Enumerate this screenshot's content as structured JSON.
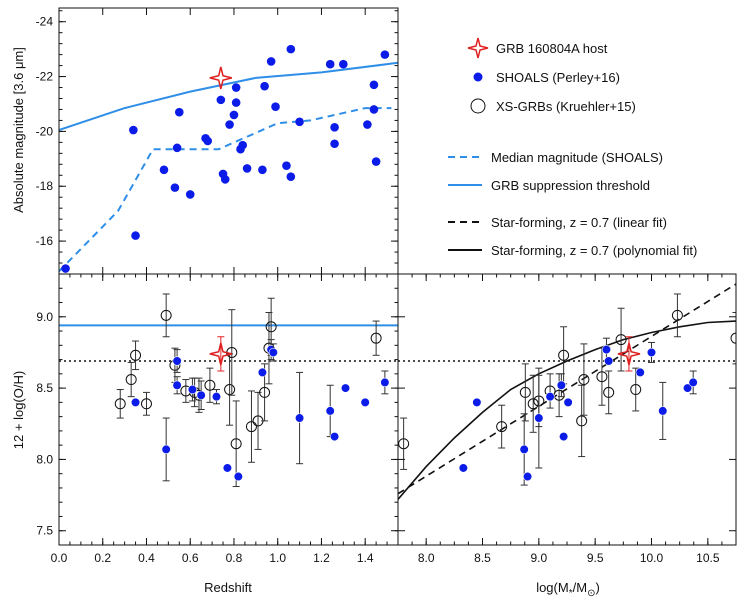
{
  "chart_data": [
    {
      "id": "top-left",
      "type": "scatter",
      "ylabel": "Absolute magnitude  [3.6 μm]",
      "xlim": [
        0,
        1.55
      ],
      "ylim": [
        -14.8,
        -24.5
      ],
      "yticks": [
        -24,
        -22,
        -20,
        -18,
        -16
      ],
      "ytick_labels": [
        "-24",
        "-22",
        "-20",
        "-18",
        "-16"
      ],
      "series": [
        {
          "name": "SHOALS (Perley+16)",
          "kind": "points",
          "color": "#0b1be8",
          "points": [
            [
              0.03,
              -15.0
            ],
            [
              0.34,
              -20.05
            ],
            [
              0.35,
              -16.2
            ],
            [
              0.48,
              -18.6
            ],
            [
              0.53,
              -17.95
            ],
            [
              0.54,
              -19.4
            ],
            [
              0.55,
              -20.7
            ],
            [
              0.6,
              -17.7
            ],
            [
              0.67,
              -19.75
            ],
            [
              0.68,
              -19.65
            ],
            [
              0.74,
              -21.15
            ],
            [
              0.75,
              -18.45
            ],
            [
              0.76,
              -18.25
            ],
            [
              0.78,
              -20.25
            ],
            [
              0.8,
              -20.6
            ],
            [
              0.81,
              -21.05
            ],
            [
              0.81,
              -21.6
            ],
            [
              0.83,
              -19.35
            ],
            [
              0.84,
              -19.5
            ],
            [
              0.86,
              -18.65
            ],
            [
              0.93,
              -18.6
            ],
            [
              0.94,
              -21.65
            ],
            [
              0.97,
              -22.55
            ],
            [
              0.99,
              -20.9
            ],
            [
              1.04,
              -18.75
            ],
            [
              1.06,
              -23.0
            ],
            [
              1.06,
              -18.35
            ],
            [
              1.1,
              -20.35
            ],
            [
              1.24,
              -22.45
            ],
            [
              1.26,
              -19.55
            ],
            [
              1.26,
              -20.15
            ],
            [
              1.3,
              -22.45
            ],
            [
              1.41,
              -20.25
            ],
            [
              1.44,
              -21.7
            ],
            [
              1.44,
              -20.8
            ],
            [
              1.45,
              -18.9
            ],
            [
              1.49,
              -22.8
            ]
          ]
        },
        {
          "name": "GRB 160804A host",
          "kind": "star",
          "color": "#e02020",
          "points": [
            [
              0.74,
              -21.95
            ]
          ]
        },
        {
          "name": "Median magnitude (SHOALS)",
          "kind": "line",
          "style": "dashed",
          "color": "#2f8fe8",
          "points": [
            [
              0.0,
              -14.9
            ],
            [
              0.27,
              -17.1
            ],
            [
              0.43,
              -19.35
            ],
            [
              0.58,
              -19.35
            ],
            [
              0.73,
              -19.35
            ],
            [
              0.83,
              -19.7
            ],
            [
              1.0,
              -20.3
            ],
            [
              1.15,
              -20.4
            ],
            [
              1.4,
              -20.85
            ],
            [
              1.52,
              -20.85
            ]
          ]
        },
        {
          "name": "GRB suppression threshold",
          "kind": "line",
          "style": "solid",
          "color": "#2f8fe8",
          "points": [
            [
              0.0,
              -20.05
            ],
            [
              0.3,
              -20.85
            ],
            [
              0.6,
              -21.45
            ],
            [
              0.9,
              -21.95
            ],
            [
              1.2,
              -22.15
            ],
            [
              1.55,
              -22.5
            ]
          ]
        }
      ]
    },
    {
      "id": "bottom-left",
      "type": "scatter",
      "xlabel": "Redshift",
      "ylabel": "12 + log(O/H)",
      "xlim": [
        0,
        1.55
      ],
      "ylim": [
        7.4,
        9.3
      ],
      "xticks": [
        0.0,
        0.2,
        0.4,
        0.6,
        0.8,
        1.0,
        1.2,
        1.4
      ],
      "xtick_labels": [
        "0.0",
        "0.2",
        "0.4",
        "0.6",
        "0.8",
        "1.0",
        "1.2",
        "1.4"
      ],
      "yticks": [
        7.5,
        8.0,
        8.5,
        9.0
      ],
      "ytick_labels": [
        "7.5",
        "8.0",
        "8.5",
        "9.0"
      ],
      "hlines": [
        {
          "y": 8.94,
          "style": "solid",
          "color": "#2f8fe8"
        },
        {
          "y": 8.69,
          "style": "dotted",
          "color": "#111111"
        }
      ],
      "series": [
        {
          "name": "XS-GRBs (Kruehler+15)",
          "kind": "open-errorbar",
          "color": "#111111",
          "points": [
            [
              0.28,
              8.39,
              0.1
            ],
            [
              0.33,
              8.56,
              0.12
            ],
            [
              0.35,
              8.73,
              0.1
            ],
            [
              0.4,
              8.39,
              0.08
            ],
            [
              0.49,
              9.01,
              0.15
            ],
            [
              0.53,
              8.66,
              0.12
            ],
            [
              0.58,
              8.48,
              0.08
            ],
            [
              0.62,
              8.47,
              0.1
            ],
            [
              0.64,
              8.45,
              0.12
            ],
            [
              0.69,
              8.52,
              0.12
            ],
            [
              0.78,
              8.49,
              0.25
            ],
            [
              0.79,
              8.75,
              0.3
            ],
            [
              0.81,
              8.11,
              0.3
            ],
            [
              0.88,
              8.23,
              0.25
            ],
            [
              0.91,
              8.27,
              0.2
            ],
            [
              0.94,
              8.47,
              0.2
            ],
            [
              0.96,
              8.78,
              0.25
            ],
            [
              0.97,
              8.93,
              0.2
            ],
            [
              1.45,
              8.85,
              0.12
            ]
          ]
        },
        {
          "name": "SHOALS (Perley+16)",
          "kind": "filled-errorbar",
          "color": "#0b1be8",
          "points": [
            [
              0.35,
              8.4,
              0.0
            ],
            [
              0.49,
              8.07,
              0.22
            ],
            [
              0.54,
              8.52,
              0.06
            ],
            [
              0.54,
              8.69,
              0.08
            ],
            [
              0.61,
              8.49,
              0.08
            ],
            [
              0.65,
              8.45,
              0.1
            ],
            [
              0.72,
              8.44,
              0.05
            ],
            [
              0.77,
              7.94,
              0.0
            ],
            [
              0.82,
              7.88,
              0.0
            ],
            [
              0.93,
              8.61,
              0.0
            ],
            [
              0.97,
              8.77,
              0.07
            ],
            [
              0.98,
              8.75,
              0.06
            ],
            [
              1.1,
              8.29,
              0.32
            ],
            [
              1.24,
              8.34,
              0.18
            ],
            [
              1.26,
              8.16,
              0.0
            ],
            [
              1.31,
              8.5,
              0.0
            ],
            [
              1.4,
              8.4,
              0.0
            ],
            [
              1.49,
              8.54,
              0.08
            ]
          ]
        },
        {
          "name": "GRB 160804A host",
          "kind": "star-errorbar",
          "color": "#e02020",
          "points": [
            [
              0.74,
              8.74,
              0.12
            ]
          ]
        }
      ]
    },
    {
      "id": "bottom-right",
      "type": "scatter",
      "xlabel": "log(M*/M⊙)",
      "xlabel_main": "log(M",
      "xlabel_sub": "*",
      "xlabel_mid": "/M",
      "xlabel_sub2": "⊙",
      "xlabel_end": ")",
      "xlim": [
        7.75,
        10.75
      ],
      "ylim": [
        7.4,
        9.3
      ],
      "xticks": [
        8.0,
        8.5,
        9.0,
        9.5,
        10.0,
        10.5
      ],
      "xtick_labels": [
        "8.0",
        "8.5",
        "9.0",
        "9.5",
        "10.0",
        "10.5"
      ],
      "hlines": [
        {
          "y": 8.69,
          "style": "dotted",
          "color": "#111111"
        }
      ],
      "series": [
        {
          "name": "Star-forming, z = 0.7 (linear fit)",
          "kind": "line",
          "style": "dashed",
          "color": "#111111",
          "points": [
            [
              7.75,
              7.76
            ],
            [
              10.75,
              9.23
            ]
          ]
        },
        {
          "name": "Star-forming, z = 0.7 (polynomial fit)",
          "kind": "line",
          "style": "solid",
          "color": "#111111",
          "points": [
            [
              7.75,
              7.72
            ],
            [
              8.0,
              7.95
            ],
            [
              8.25,
              8.15
            ],
            [
              8.5,
              8.33
            ],
            [
              8.75,
              8.49
            ],
            [
              9.0,
              8.6
            ],
            [
              9.25,
              8.69
            ],
            [
              9.5,
              8.77
            ],
            [
              9.75,
              8.84
            ],
            [
              10.0,
              8.89
            ],
            [
              10.25,
              8.93
            ],
            [
              10.5,
              8.96
            ],
            [
              10.75,
              8.97
            ]
          ]
        },
        {
          "name": "XS-GRBs (Kruehler+15)",
          "kind": "open-errorbar",
          "color": "#111111",
          "points": [
            [
              7.8,
              8.11,
              0.18
            ],
            [
              8.67,
              8.23,
              0.15
            ],
            [
              8.88,
              8.47,
              0.2
            ],
            [
              8.95,
              8.39,
              0.2
            ],
            [
              9.0,
              8.41,
              0.18
            ],
            [
              9.1,
              8.48,
              0.12
            ],
            [
              9.18,
              8.45,
              0.15
            ],
            [
              9.22,
              8.73,
              0.2
            ],
            [
              9.38,
              8.27,
              0.25
            ],
            [
              9.4,
              8.56,
              0.25
            ],
            [
              9.56,
              8.58,
              0.2
            ],
            [
              9.62,
              8.47,
              0.15
            ],
            [
              9.73,
              8.84,
              0.22
            ],
            [
              9.86,
              8.49,
              0.15
            ],
            [
              10.23,
              9.01,
              0.15
            ],
            [
              10.75,
              8.85,
              0.18
            ]
          ]
        },
        {
          "name": "SHOALS (Perley+16)",
          "kind": "filled-errorbar",
          "color": "#0b1be8",
          "points": [
            [
              8.33,
              7.94,
              0.0
            ],
            [
              8.45,
              8.4,
              0.0
            ],
            [
              8.87,
              8.07,
              0.25
            ],
            [
              8.9,
              7.88,
              0.0
            ],
            [
              9.0,
              8.29,
              0.35
            ],
            [
              9.1,
              8.44,
              0.0
            ],
            [
              9.2,
              8.52,
              0.08
            ],
            [
              9.22,
              8.16,
              0.0
            ],
            [
              9.26,
              8.4,
              0.0
            ],
            [
              9.6,
              8.77,
              0.08
            ],
            [
              9.62,
              8.69,
              0.0
            ],
            [
              9.9,
              8.61,
              0.0
            ],
            [
              10.0,
              8.75,
              0.07
            ],
            [
              10.1,
              8.34,
              0.2
            ],
            [
              10.32,
              8.5,
              0.0
            ],
            [
              10.37,
              8.54,
              0.08
            ]
          ]
        },
        {
          "name": "GRB 160804A host",
          "kind": "star-errorbar",
          "color": "#e02020",
          "points": [
            [
              9.8,
              8.74,
              0.12
            ]
          ]
        }
      ]
    }
  ],
  "legend": [
    {
      "kind": "star",
      "label": "GRB 160804A host",
      "color": "#e02020"
    },
    {
      "kind": "filled",
      "label": "SHOALS (Perley+16)",
      "color": "#0b1be8"
    },
    {
      "kind": "open",
      "label": "XS-GRBs (Kruehler+15)",
      "color": "#111111"
    },
    {
      "kind": "dashed",
      "label": "Median magnitude (SHOALS)",
      "color": "#2f8fe8"
    },
    {
      "kind": "solid",
      "label": "GRB suppression threshold",
      "color": "#2f8fe8"
    },
    {
      "kind": "dashed",
      "label": "Star-forming, z = 0.7 (linear fit)",
      "color": "#111111"
    },
    {
      "kind": "solid",
      "label": "Star-forming, z = 0.7 (polynomial fit)",
      "color": "#111111"
    }
  ]
}
